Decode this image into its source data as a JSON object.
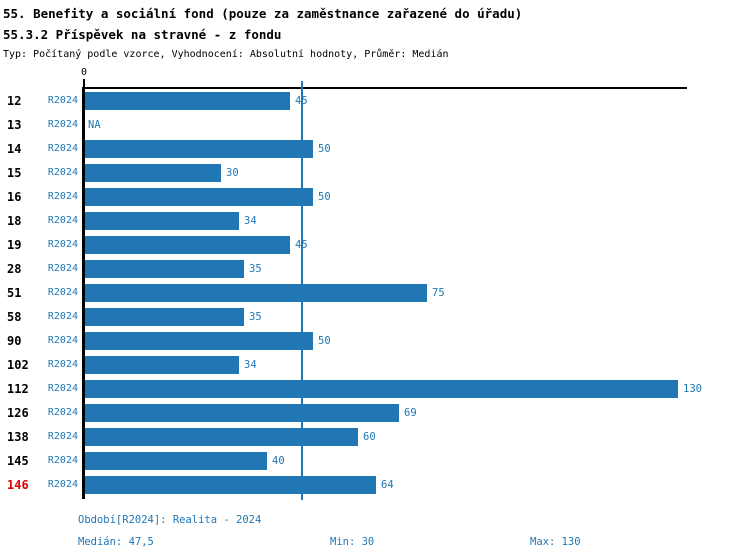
{
  "header": {
    "title1": "55. Benefity a sociální fond (pouze za zaměstnance zařazené do úřadu)",
    "title2": "55.3.2 Příspěvek na stravné - z fondu",
    "subtitle": "Typ: Počítaný podle vzorce, Vyhodnocení: Absolutní hodnoty, Průměr: Medián"
  },
  "chart_data": {
    "type": "bar",
    "orientation": "horizontal",
    "categories": [
      "12",
      "13",
      "14",
      "15",
      "16",
      "18",
      "19",
      "28",
      "51",
      "58",
      "90",
      "102",
      "112",
      "126",
      "138",
      "145",
      "146"
    ],
    "series_label": "R2024",
    "values": [
      45,
      null,
      50,
      30,
      50,
      34,
      45,
      35,
      75,
      35,
      50,
      34,
      130,
      69,
      60,
      40,
      64
    ],
    "na_label": "NA",
    "x_tick_labels": [
      "0"
    ],
    "xlim": [
      0,
      131
    ],
    "median_line_value": 47.5,
    "highlighted_category": "146",
    "bar_color": "#2077b4",
    "highlight_color": "#dd0000",
    "grid": false,
    "legend": false
  },
  "footer": {
    "period": "Období[R2024]: Realita - 2024",
    "median": "Medián: 47,5",
    "min": "Min: 30",
    "max": "Max: 130"
  }
}
